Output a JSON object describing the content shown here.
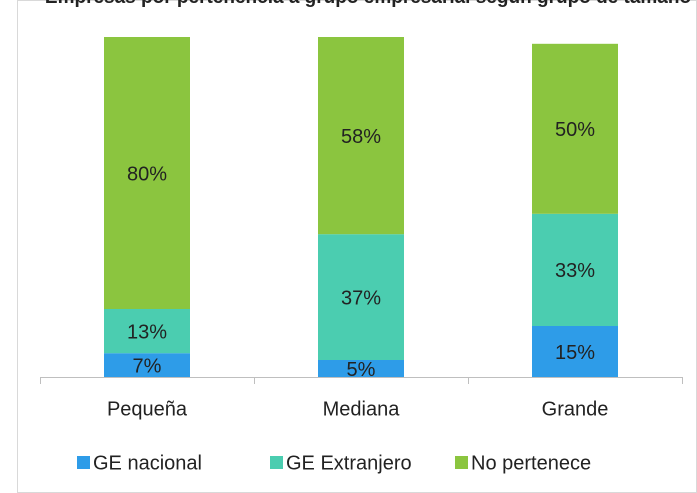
{
  "chart_data": {
    "type": "stacked_bar",
    "title": "Empresas por pertenencia a grupo empresarial según grupo de tamaño",
    "categories": [
      "Pequeña",
      "Mediana",
      "Grande"
    ],
    "series": [
      {
        "name": "GE nacional",
        "color": "#2e9ce8",
        "values": [
          7,
          5,
          15
        ]
      },
      {
        "name": "GE Extranjero",
        "color": "#4bcdb0",
        "values": [
          13,
          37,
          33
        ]
      },
      {
        "name": "No pertenece",
        "color": "#8bc53f",
        "values": [
          80,
          58,
          50
        ]
      }
    ],
    "value_labels": [
      [
        "7%",
        "5%",
        "15%"
      ],
      [
        "13%",
        "37%",
        "33%"
      ],
      [
        "80%",
        "58%",
        "50%"
      ]
    ],
    "ylim": [
      0,
      100
    ],
    "legend": "bottom"
  }
}
